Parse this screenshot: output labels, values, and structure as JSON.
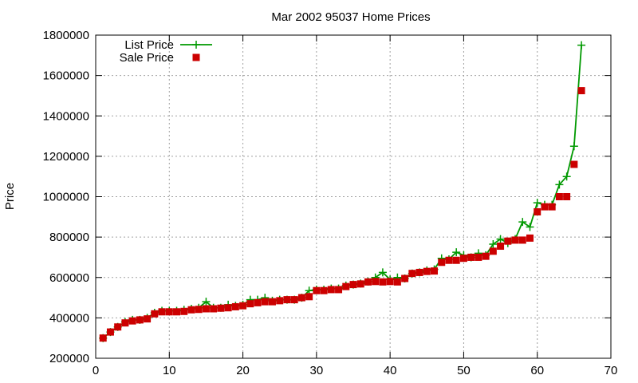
{
  "chart_data": {
    "type": "line",
    "title": "Mar 2002 95037 Home Prices",
    "xlabel": "",
    "ylabel": "Price",
    "xlim": [
      0,
      70
    ],
    "ylim": [
      200000,
      1800000
    ],
    "xticks": [
      0,
      10,
      20,
      30,
      40,
      50,
      60,
      70
    ],
    "yticks": [
      200000,
      400000,
      600000,
      800000,
      1000000,
      1200000,
      1400000,
      1600000,
      1800000
    ],
    "grid": true,
    "legend_position": "top-left",
    "x": [
      1,
      2,
      3,
      4,
      5,
      6,
      7,
      8,
      9,
      10,
      11,
      12,
      13,
      14,
      15,
      16,
      17,
      18,
      19,
      20,
      21,
      22,
      23,
      24,
      25,
      26,
      27,
      28,
      29,
      30,
      31,
      32,
      33,
      34,
      35,
      36,
      37,
      38,
      39,
      40,
      41,
      42,
      43,
      44,
      45,
      46,
      47,
      48,
      49,
      50,
      51,
      52,
      53,
      54,
      55,
      56,
      57,
      58,
      59,
      60,
      61,
      62,
      63,
      64,
      65,
      66
    ],
    "series": [
      {
        "name": "List Price",
        "style": "line-plus",
        "color": "#009900",
        "values": [
          300000,
          330000,
          355000,
          380000,
          390000,
          390000,
          400000,
          425000,
          435000,
          435000,
          435000,
          440000,
          445000,
          450000,
          480000,
          450000,
          450000,
          465000,
          460000,
          465000,
          490000,
          490000,
          500000,
          485000,
          490000,
          490000,
          490000,
          500000,
          535000,
          540000,
          540000,
          545000,
          545000,
          560000,
          565000,
          570000,
          580000,
          600000,
          625000,
          590000,
          600000,
          595000,
          620000,
          625000,
          635000,
          640000,
          695000,
          690000,
          725000,
          710000,
          700000,
          720000,
          710000,
          765000,
          790000,
          770000,
          790000,
          875000,
          850000,
          970000,
          960000,
          960000,
          1060000,
          1100000,
          1250000,
          1750000
        ]
      },
      {
        "name": "Sale Price",
        "style": "square",
        "color": "#cc0000",
        "values": [
          300000,
          330000,
          355000,
          375000,
          385000,
          390000,
          395000,
          420000,
          430000,
          430000,
          430000,
          432000,
          440000,
          442000,
          445000,
          445000,
          448000,
          450000,
          455000,
          460000,
          470000,
          475000,
          480000,
          480000,
          485000,
          490000,
          490000,
          500000,
          505000,
          535000,
          535000,
          540000,
          540000,
          555000,
          565000,
          568000,
          578000,
          580000,
          578000,
          580000,
          578000,
          595000,
          620000,
          625000,
          630000,
          632000,
          675000,
          685000,
          685000,
          695000,
          700000,
          700000,
          705000,
          730000,
          755000,
          780000,
          785000,
          785000,
          795000,
          925000,
          950000,
          950000,
          1000000,
          1000000,
          1160000,
          1525000
        ]
      }
    ]
  }
}
